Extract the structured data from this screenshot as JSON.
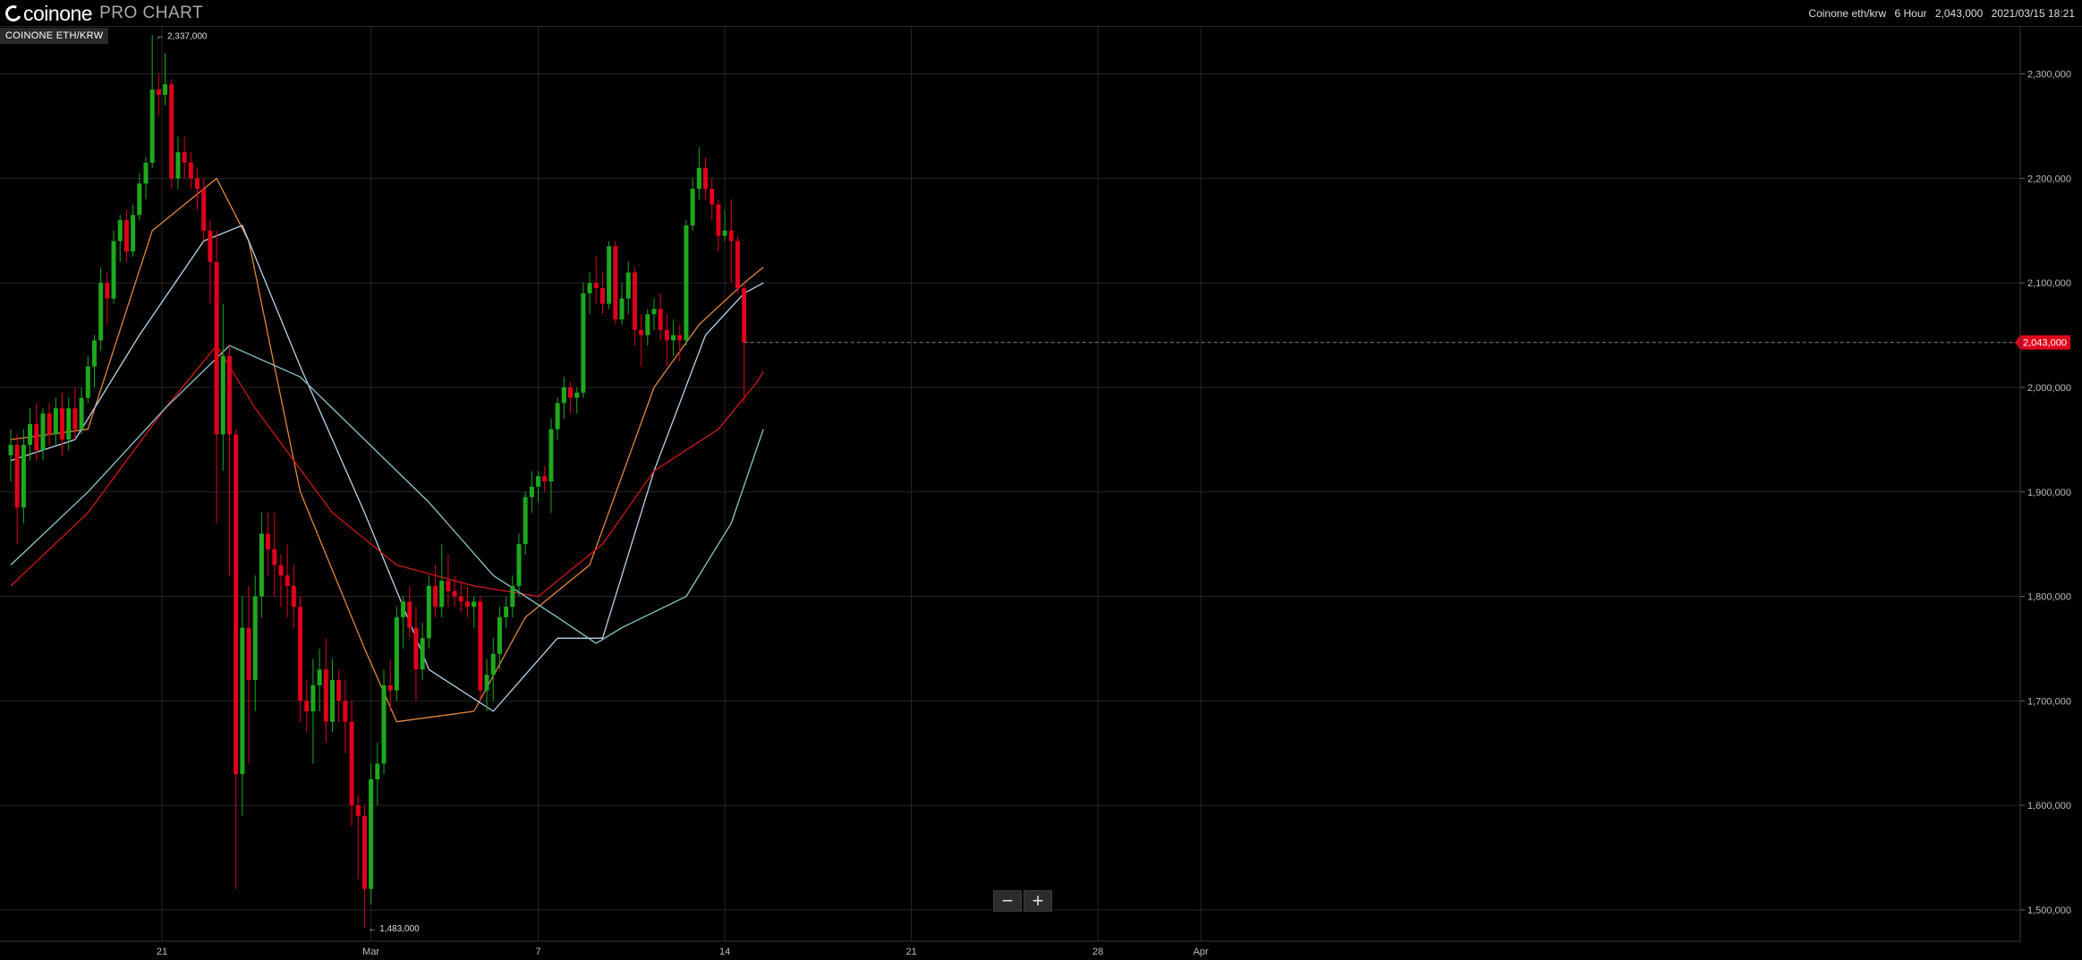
{
  "header": {
    "brand": "coinone",
    "product": "PRO CHART",
    "info": [
      "Coinone eth/krw",
      "6 Hour",
      "2,043,000",
      "2021/03/15 18:21"
    ]
  },
  "symbol_label": "COINONE ETH/KRW",
  "zoom": {
    "minus": "−",
    "plus": "+"
  },
  "colors": {
    "up": "#1fa81f",
    "down": "#e0001b",
    "ma_orange": "#e0873a",
    "ma_lightblue": "#b8d4ea",
    "ma_red": "#d01818",
    "ma_teal": "#8cc6cc",
    "grid": "#262626",
    "axis": "#3a3a3a"
  },
  "chart_data": {
    "type": "candlestick",
    "title": "",
    "interval": "6 Hour",
    "y_range": [
      1470000,
      2345000
    ],
    "y_ticks": [
      1500000,
      1600000,
      1700000,
      1800000,
      1900000,
      2000000,
      2100000,
      2200000,
      2300000
    ],
    "y_tick_labels": [
      "1,500,000",
      "1,600,000",
      "1,700,000",
      "1,800,000",
      "1,900,000",
      "2,000,000",
      "2,100,000",
      "2,200,000",
      "2,300,000"
    ],
    "x_tick_labels": [
      "21",
      "Mar",
      "7",
      "14",
      "21",
      "28",
      "Apr"
    ],
    "last_price": "2,043,000",
    "last_price_value": 2043000,
    "high_marker": "2,337,000",
    "high_marker_value": 2337000,
    "low_marker": "1,483,000",
    "low_marker_value": 1483000,
    "candles": [
      [
        1935000,
        1960000,
        1910000,
        1945000
      ],
      [
        1945000,
        1955000,
        1850000,
        1885000
      ],
      [
        1885000,
        1960000,
        1870000,
        1945000
      ],
      [
        1945000,
        1980000,
        1930000,
        1965000
      ],
      [
        1965000,
        1985000,
        1930000,
        1940000
      ],
      [
        1940000,
        1980000,
        1930000,
        1975000
      ],
      [
        1975000,
        1985000,
        1945000,
        1955000
      ],
      [
        1955000,
        1990000,
        1945000,
        1980000
      ],
      [
        1980000,
        1995000,
        1935000,
        1950000
      ],
      [
        1950000,
        1990000,
        1940000,
        1980000
      ],
      [
        1980000,
        2000000,
        1950000,
        1960000
      ],
      [
        1960000,
        2000000,
        1955000,
        1990000
      ],
      [
        1990000,
        2030000,
        1985000,
        2020000
      ],
      [
        2020000,
        2050000,
        2000000,
        2045000
      ],
      [
        2045000,
        2115000,
        2035000,
        2100000
      ],
      [
        2100000,
        2110000,
        2060000,
        2085000
      ],
      [
        2085000,
        2150000,
        2080000,
        2140000
      ],
      [
        2140000,
        2165000,
        2120000,
        2160000
      ],
      [
        2160000,
        2170000,
        2120000,
        2130000
      ],
      [
        2130000,
        2175000,
        2125000,
        2165000
      ],
      [
        2165000,
        2205000,
        2160000,
        2195000
      ],
      [
        2195000,
        2220000,
        2180000,
        2215000
      ],
      [
        2215000,
        2337000,
        2210000,
        2285000
      ],
      [
        2285000,
        2300000,
        2260000,
        2280000
      ],
      [
        2280000,
        2320000,
        2270000,
        2290000
      ],
      [
        2290000,
        2295000,
        2190000,
        2200000
      ],
      [
        2200000,
        2240000,
        2190000,
        2225000
      ],
      [
        2225000,
        2240000,
        2200000,
        2215000
      ],
      [
        2215000,
        2225000,
        2190000,
        2200000
      ],
      [
        2200000,
        2210000,
        2170000,
        2190000
      ],
      [
        2190000,
        2200000,
        2140000,
        2150000
      ],
      [
        2150000,
        2160000,
        2080000,
        2120000
      ],
      [
        2120000,
        2150000,
        1870000,
        1955000
      ],
      [
        1955000,
        2080000,
        1920000,
        2030000
      ],
      [
        2030000,
        2040000,
        1820000,
        1955000
      ],
      [
        1955000,
        1960000,
        1520000,
        1630000
      ],
      [
        1630000,
        1800000,
        1590000,
        1770000
      ],
      [
        1770000,
        1810000,
        1640000,
        1720000
      ],
      [
        1720000,
        1820000,
        1690000,
        1800000
      ],
      [
        1800000,
        1880000,
        1780000,
        1860000
      ],
      [
        1860000,
        1880000,
        1820000,
        1845000
      ],
      [
        1845000,
        1880000,
        1800000,
        1830000
      ],
      [
        1830000,
        1840000,
        1790000,
        1820000
      ],
      [
        1820000,
        1850000,
        1780000,
        1810000
      ],
      [
        1810000,
        1830000,
        1770000,
        1790000
      ],
      [
        1790000,
        1800000,
        1680000,
        1700000
      ],
      [
        1700000,
        1720000,
        1670000,
        1690000
      ],
      [
        1690000,
        1740000,
        1640000,
        1715000
      ],
      [
        1715000,
        1750000,
        1690000,
        1730000
      ],
      [
        1730000,
        1760000,
        1660000,
        1680000
      ],
      [
        1680000,
        1740000,
        1670000,
        1720000
      ],
      [
        1720000,
        1730000,
        1680000,
        1700000
      ],
      [
        1700000,
        1720000,
        1650000,
        1680000
      ],
      [
        1680000,
        1700000,
        1580000,
        1600000
      ],
      [
        1600000,
        1610000,
        1530000,
        1590000
      ],
      [
        1590000,
        1600000,
        1483000,
        1520000
      ],
      [
        1520000,
        1640000,
        1505000,
        1625000
      ],
      [
        1625000,
        1660000,
        1600000,
        1640000
      ],
      [
        1640000,
        1730000,
        1630000,
        1715000
      ],
      [
        1715000,
        1740000,
        1690000,
        1710000
      ],
      [
        1710000,
        1790000,
        1700000,
        1780000
      ],
      [
        1780000,
        1800000,
        1750000,
        1795000
      ],
      [
        1795000,
        1810000,
        1760000,
        1770000
      ],
      [
        1770000,
        1790000,
        1700000,
        1730000
      ],
      [
        1730000,
        1775000,
        1720000,
        1760000
      ],
      [
        1760000,
        1820000,
        1750000,
        1810000
      ],
      [
        1810000,
        1830000,
        1780000,
        1790000
      ],
      [
        1790000,
        1850000,
        1780000,
        1815000
      ],
      [
        1815000,
        1840000,
        1790000,
        1805000
      ],
      [
        1805000,
        1820000,
        1790000,
        1800000
      ],
      [
        1800000,
        1815000,
        1785000,
        1795000
      ],
      [
        1795000,
        1810000,
        1780000,
        1790000
      ],
      [
        1790000,
        1800000,
        1770000,
        1795000
      ],
      [
        1795000,
        1800000,
        1700000,
        1710000
      ],
      [
        1710000,
        1740000,
        1690000,
        1725000
      ],
      [
        1725000,
        1760000,
        1700000,
        1745000
      ],
      [
        1745000,
        1790000,
        1730000,
        1780000
      ],
      [
        1780000,
        1800000,
        1770000,
        1790000
      ],
      [
        1790000,
        1820000,
        1780000,
        1810000
      ],
      [
        1810000,
        1860000,
        1800000,
        1850000
      ],
      [
        1850000,
        1900000,
        1840000,
        1895000
      ],
      [
        1895000,
        1920000,
        1880000,
        1905000
      ],
      [
        1905000,
        1920000,
        1890000,
        1915000
      ],
      [
        1915000,
        1925000,
        1900000,
        1910000
      ],
      [
        1910000,
        1970000,
        1880000,
        1960000
      ],
      [
        1960000,
        1990000,
        1950000,
        1985000
      ],
      [
        1985000,
        2010000,
        1970000,
        2000000
      ],
      [
        2000000,
        2005000,
        1975000,
        1990000
      ],
      [
        1990000,
        2000000,
        1975000,
        1995000
      ],
      [
        1995000,
        2100000,
        1990000,
        2090000
      ],
      [
        2090000,
        2110000,
        2070000,
        2100000
      ],
      [
        2100000,
        2125000,
        2080000,
        2095000
      ],
      [
        2095000,
        2110000,
        2070000,
        2080000
      ],
      [
        2080000,
        2140000,
        2075000,
        2135000
      ],
      [
        2135000,
        2140000,
        2060000,
        2065000
      ],
      [
        2065000,
        2100000,
        2060000,
        2085000
      ],
      [
        2085000,
        2120000,
        2070000,
        2110000
      ],
      [
        2110000,
        2115000,
        2040000,
        2055000
      ],
      [
        2055000,
        2070000,
        2020000,
        2050000
      ],
      [
        2050000,
        2075000,
        2040000,
        2070000
      ],
      [
        2070000,
        2085000,
        2055000,
        2075000
      ],
      [
        2075000,
        2090000,
        2045000,
        2055000
      ],
      [
        2055000,
        2070000,
        2020000,
        2045000
      ],
      [
        2045000,
        2065000,
        2030000,
        2050000
      ],
      [
        2050000,
        2060000,
        2025000,
        2045000
      ],
      [
        2045000,
        2160000,
        2040000,
        2155000
      ],
      [
        2155000,
        2200000,
        2150000,
        2190000
      ],
      [
        2190000,
        2230000,
        2180000,
        2210000
      ],
      [
        2210000,
        2220000,
        2180000,
        2190000
      ],
      [
        2190000,
        2200000,
        2160000,
        2175000
      ],
      [
        2175000,
        2180000,
        2130000,
        2145000
      ],
      [
        2145000,
        2170000,
        2140000,
        2150000
      ],
      [
        2150000,
        2180000,
        2100000,
        2140000
      ],
      [
        2140000,
        2145000,
        2090000,
        2095000
      ],
      [
        2095000,
        2100000,
        1985000,
        2043000
      ]
    ],
    "moving_averages": [
      {
        "color": "#e0873a",
        "values": [
          [
            0,
            1950000
          ],
          [
            12,
            1960000
          ],
          [
            22,
            2150000
          ],
          [
            32,
            2200000
          ],
          [
            37,
            2140000
          ],
          [
            45,
            1900000
          ],
          [
            55,
            1750000
          ],
          [
            60,
            1680000
          ],
          [
            72,
            1690000
          ],
          [
            80,
            1780000
          ],
          [
            90,
            1830000
          ],
          [
            100,
            2000000
          ],
          [
            107,
            2060000
          ],
          [
            114,
            2100000
          ],
          [
            117,
            2115000
          ]
        ]
      },
      {
        "color": "#b8d4ea",
        "values": [
          [
            0,
            1930000
          ],
          [
            10,
            1950000
          ],
          [
            20,
            2050000
          ],
          [
            30,
            2140000
          ],
          [
            36,
            2155000
          ],
          [
            45,
            2020000
          ],
          [
            55,
            1880000
          ],
          [
            65,
            1730000
          ],
          [
            75,
            1690000
          ],
          [
            85,
            1760000
          ],
          [
            92,
            1760000
          ],
          [
            100,
            1920000
          ],
          [
            108,
            2050000
          ],
          [
            114,
            2090000
          ],
          [
            117,
            2100000
          ]
        ]
      },
      {
        "color": "#d01818",
        "values": [
          [
            0,
            1810000
          ],
          [
            12,
            1880000
          ],
          [
            24,
            1980000
          ],
          [
            32,
            2040000
          ],
          [
            38,
            1980000
          ],
          [
            50,
            1880000
          ],
          [
            60,
            1830000
          ],
          [
            72,
            1810000
          ],
          [
            82,
            1800000
          ],
          [
            92,
            1850000
          ],
          [
            100,
            1920000
          ],
          [
            110,
            1960000
          ],
          [
            116,
            2005000
          ],
          [
            117,
            2015000
          ]
        ]
      },
      {
        "color": "#8cc6cc",
        "values": [
          [
            0,
            1830000
          ],
          [
            12,
            1900000
          ],
          [
            24,
            1980000
          ],
          [
            34,
            2040000
          ],
          [
            45,
            2010000
          ],
          [
            55,
            1950000
          ],
          [
            65,
            1890000
          ],
          [
            75,
            1820000
          ],
          [
            85,
            1780000
          ],
          [
            91,
            1755000
          ],
          [
            95,
            1770000
          ],
          [
            105,
            1800000
          ],
          [
            112,
            1870000
          ],
          [
            117,
            1960000
          ]
        ]
      }
    ]
  }
}
